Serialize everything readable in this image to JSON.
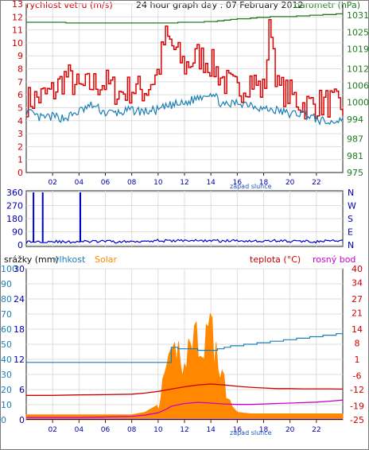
{
  "colors": {
    "wind": "#dd0000",
    "wind_avg": "#1a7fb5",
    "pressure": "#1f7a1f",
    "direction": "#0000cc",
    "humidity": "#1a7fb5",
    "solar": "#ff8800",
    "temperature": "#cc0000",
    "dewpoint": "#cc00cc",
    "rain": "#0000cc",
    "grid": "#dddddd",
    "axis_left": "#cc0000",
    "axis_blue": "#1a7fb5",
    "axis_rain": "#0000aa",
    "axis_pressure": "#1f7a1f",
    "axis_dir": "#0000aa"
  },
  "chart_data": [
    {
      "type": "line",
      "title": "24 hour graph day : 07 February 2012",
      "ylabel_left": "rychlost vetru (m/s)",
      "ylabel_right": "barometr (hPa)",
      "x_ticks": [
        "02",
        "04",
        "06",
        "08",
        "10",
        "12",
        "14",
        "16",
        "18",
        "20",
        "22"
      ],
      "x_annotation": "západ slunce",
      "x_range": [
        0,
        24
      ],
      "y_left_ticks": [
        "0",
        "1",
        "2",
        "3",
        "4",
        "5",
        "6",
        "7",
        "8",
        "9",
        "10",
        "11",
        "12",
        "13"
      ],
      "y_left_range": [
        0,
        13
      ],
      "y_right_ticks": [
        "975",
        "981",
        "987",
        "994",
        "1000",
        "1006",
        "1012",
        "1019",
        "1025",
        "1031"
      ],
      "y_right_range": [
        975,
        1035
      ],
      "series": [
        {
          "name": "rychlost vetru (m/s)",
          "x": [
            0,
            1,
            2,
            3,
            4,
            5,
            6,
            7,
            8,
            9,
            10,
            10.5,
            11,
            11.5,
            12,
            13,
            14,
            15,
            16,
            17,
            18,
            18.5,
            19,
            20,
            21,
            22,
            23,
            24
          ],
          "values": [
            5.5,
            5.8,
            6.2,
            7.5,
            6.4,
            6.8,
            6.9,
            6.1,
            6.5,
            6.3,
            7.8,
            10.5,
            9.8,
            9.0,
            8.2,
            9.0,
            8.4,
            7.0,
            6.3,
            7.2,
            6.2,
            12.0,
            6.5,
            6.0,
            5.2,
            5.3,
            5.4,
            5.0
          ]
        },
        {
          "name": "",
          "x": [
            0,
            1,
            2,
            3,
            4,
            5,
            6,
            7,
            8,
            9,
            10,
            11,
            12,
            13,
            14,
            15,
            16,
            17,
            18,
            19,
            20,
            21,
            22,
            23,
            24
          ],
          "values": [
            4.7,
            4.2,
            4.3,
            4.2,
            4.7,
            5.2,
            4.6,
            4.6,
            4.8,
            4.7,
            4.8,
            5.2,
            5.3,
            5.8,
            6.2,
            5.1,
            5.4,
            5.3,
            4.9,
            4.8,
            4.5,
            4.6,
            4.1,
            3.8,
            4.2
          ]
        },
        {
          "name": "barometr (hPa)",
          "x": [
            0,
            2,
            4,
            6,
            8,
            10,
            12,
            14,
            16,
            18,
            20,
            22,
            24
          ],
          "values": [
            1028.5,
            1028.4,
            1028.3,
            1028.3,
            1028.3,
            1028.3,
            1028.4,
            1028.8,
            1029.7,
            1030.3,
            1030.6,
            1031.0,
            1031.6
          ]
        }
      ]
    },
    {
      "type": "scatter",
      "ylabel_right": [
        "N",
        "W",
        "S",
        "E",
        "N"
      ],
      "y_left_ticks": [
        "0",
        "90",
        "180",
        "270",
        "360"
      ],
      "y_range": [
        0,
        360
      ],
      "x_range": [
        0,
        24
      ],
      "series": [
        {
          "name": "",
          "x": [
            0,
            1,
            2,
            3,
            4,
            5,
            6,
            7,
            8,
            9,
            10,
            11,
            12,
            13,
            14,
            15,
            16,
            17,
            18,
            19,
            20,
            21,
            22,
            23,
            24
          ],
          "values": [
            20,
            22,
            25,
            18,
            24,
            22,
            25,
            20,
            23,
            28,
            30,
            26,
            32,
            28,
            30,
            26,
            30,
            28,
            25,
            30,
            24,
            26,
            22,
            28,
            24
          ]
        }
      ],
      "spikes": [
        {
          "x": 0.55,
          "value": 360
        },
        {
          "x": 1.25,
          "value": 360
        },
        {
          "x": 4.1,
          "value": 360
        }
      ]
    },
    {
      "type": "line",
      "legend": [
        "srážky (mm)",
        "vlhkost",
        "Solar",
        "teplota (°C)",
        "rosný bod"
      ],
      "x_ticks": [
        "02",
        "04",
        "06",
        "08",
        "10",
        "12",
        "14",
        "16",
        "18",
        "20",
        "22"
      ],
      "x_annotation": "západ slunce",
      "x_range": [
        0,
        24
      ],
      "y_rain_ticks": [
        "0",
        "6",
        "12",
        "18",
        "24",
        "30"
      ],
      "y_rain_range": [
        0,
        30
      ],
      "y_humidity_ticks": [
        "0",
        "10",
        "20",
        "30",
        "40",
        "50",
        "60",
        "70",
        "80",
        "90",
        "100"
      ],
      "y_humidity_range": [
        0,
        100
      ],
      "y_temp_ticks": [
        "-25",
        "-19",
        "-12",
        "-6",
        "1",
        "8",
        "14",
        "21",
        "27",
        "34",
        "40"
      ],
      "y_temp_range": [
        -25,
        40
      ],
      "series": [
        {
          "name": "vlhkost",
          "x": [
            0,
            2,
            4,
            6,
            8,
            10.6,
            10.7,
            12,
            13,
            14,
            15,
            16,
            17,
            18,
            19,
            20,
            21,
            22,
            23,
            24
          ],
          "values": [
            38,
            38,
            38,
            38,
            38,
            38,
            48,
            47,
            46,
            46,
            48,
            49,
            50,
            51,
            52,
            53,
            54,
            55,
            56,
            57
          ]
        },
        {
          "name": "teplota (°C)",
          "x": [
            0,
            2,
            4,
            6,
            8,
            9,
            10,
            11,
            12,
            13,
            14,
            15,
            16,
            17,
            18,
            19,
            20,
            21,
            22,
            23,
            24
          ],
          "values": [
            -14.5,
            -14.5,
            -14.3,
            -14.2,
            -14.0,
            -13.5,
            -12.8,
            -11.8,
            -10.8,
            -10.0,
            -9.6,
            -10.0,
            -10.6,
            -11.0,
            -11.3,
            -11.6,
            -11.6,
            -11.7,
            -11.7,
            -11.7,
            -11.8
          ]
        },
        {
          "name": "rosný bod",
          "x": [
            0,
            2,
            4,
            6,
            8,
            9,
            10,
            10.6,
            11,
            12,
            13,
            14,
            15,
            16,
            17,
            18,
            19,
            20,
            21,
            22,
            23,
            24
          ],
          "values": [
            -24.0,
            -24.0,
            -24.0,
            -23.8,
            -23.5,
            -23.0,
            -22.0,
            -20.5,
            -19.2,
            -18.0,
            -17.5,
            -17.8,
            -18.2,
            -18.4,
            -18.4,
            -18.2,
            -18.0,
            -17.8,
            -17.6,
            -17.4,
            -17.0,
            -16.5
          ]
        },
        {
          "name": "Solar",
          "x": [
            0,
            8,
            9,
            10,
            10.5,
            11,
            11.5,
            12,
            12.5,
            13,
            13.5,
            14,
            14.5,
            15,
            15.5,
            16,
            17,
            18,
            19,
            20,
            21,
            22,
            23,
            24
          ],
          "values": [
            1,
            1,
            1.5,
            3,
            9,
            13,
            16,
            14,
            18,
            20,
            19,
            21,
            14,
            8,
            3,
            1.5,
            1.2,
            1.2,
            1.2,
            1.2,
            1.2,
            1.2,
            1.2,
            1.2
          ],
          "unit_axis": "srážky (mm)"
        }
      ]
    }
  ]
}
